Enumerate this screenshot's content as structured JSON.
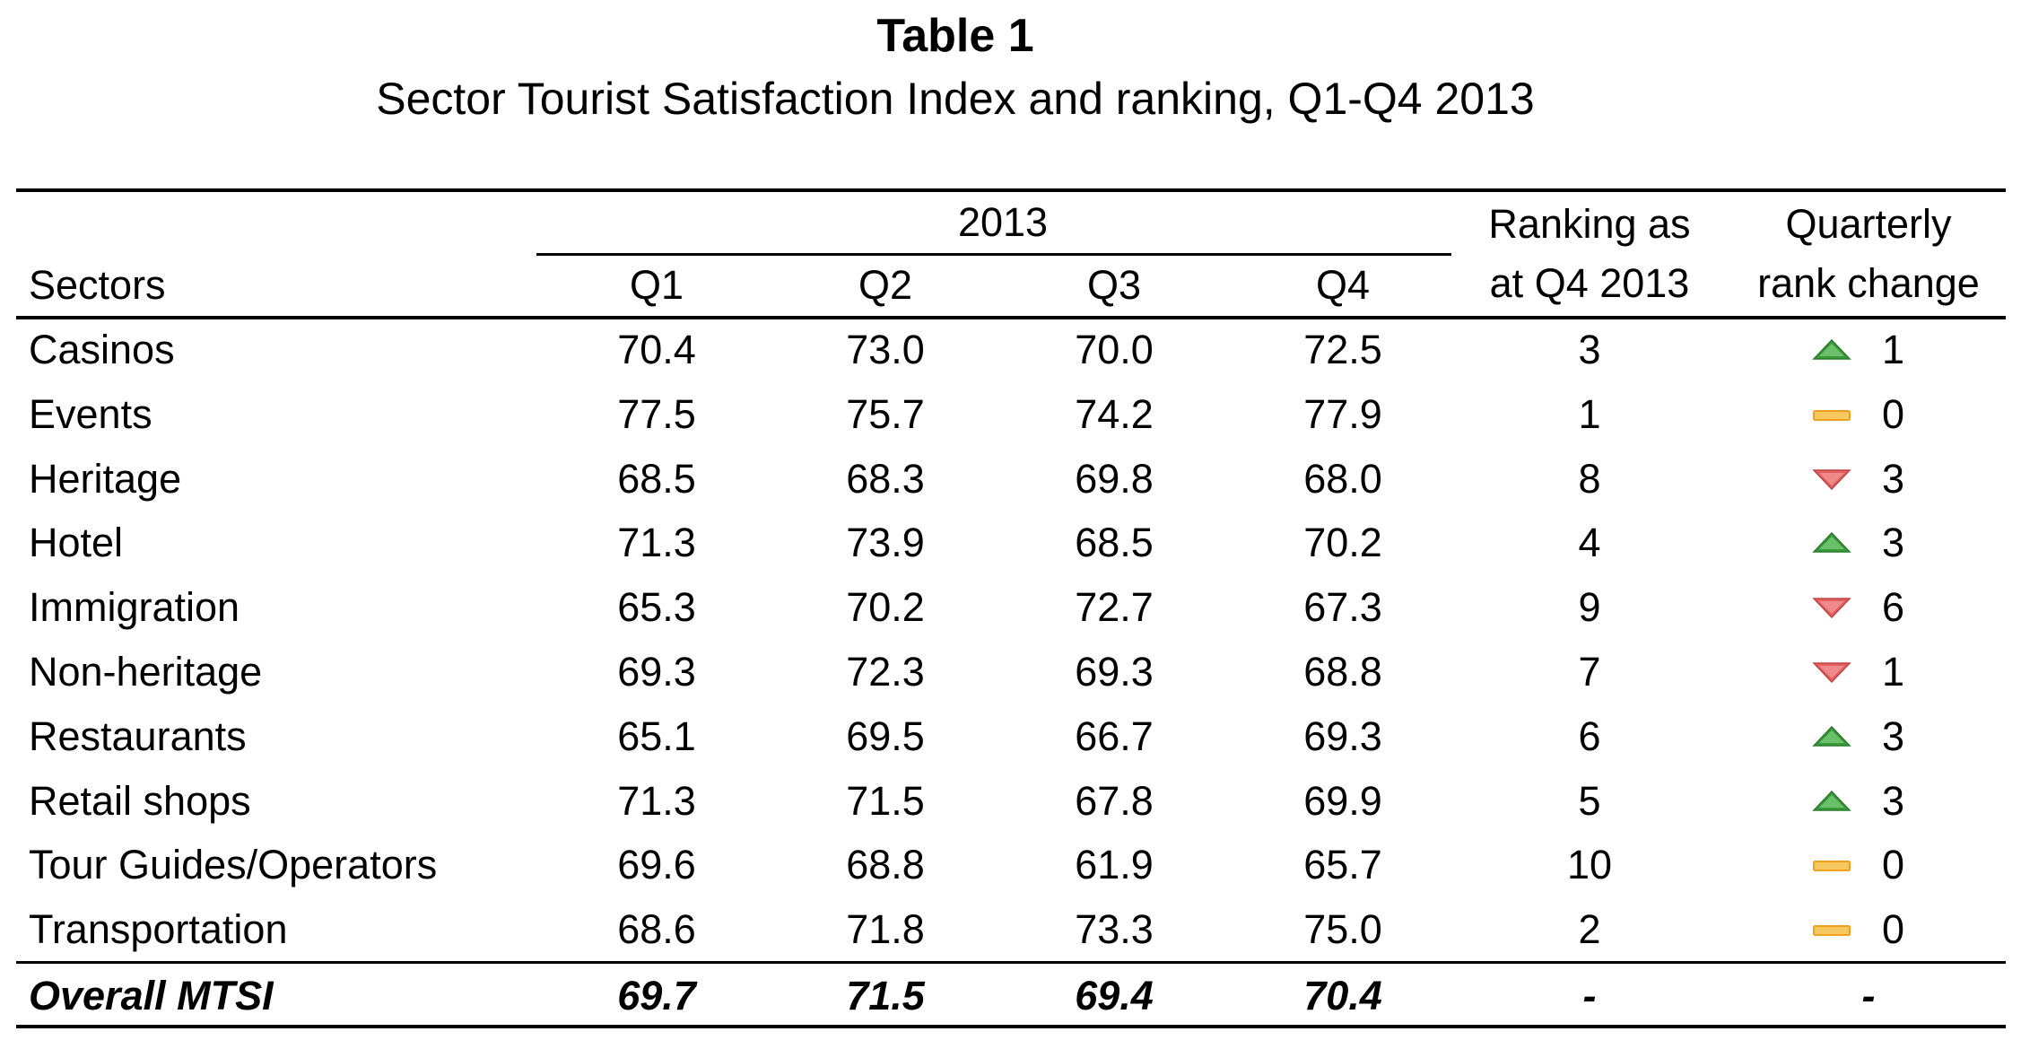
{
  "title": "Table 1",
  "subtitle": "Sector Tourist Satisfaction Index and ranking, Q1-Q4 2013",
  "header": {
    "year": "2013",
    "sectors": "Sectors",
    "quarters": [
      "Q1",
      "Q2",
      "Q3",
      "Q4"
    ],
    "ranking_line1": "Ranking as",
    "ranking_line2": "at Q4 2013",
    "change_line1": "Quarterly",
    "change_line2": "rank change"
  },
  "rows": [
    {
      "sector": "Casinos",
      "q1": "70.4",
      "q2": "73.0",
      "q3": "70.0",
      "q4": "72.5",
      "rank": "3",
      "dir": "up",
      "change": "1"
    },
    {
      "sector": "Events",
      "q1": "77.5",
      "q2": "75.7",
      "q3": "74.2",
      "q4": "77.9",
      "rank": "1",
      "dir": "same",
      "change": "0"
    },
    {
      "sector": "Heritage",
      "q1": "68.5",
      "q2": "68.3",
      "q3": "69.8",
      "q4": "68.0",
      "rank": "8",
      "dir": "down",
      "change": "3"
    },
    {
      "sector": "Hotel",
      "q1": "71.3",
      "q2": "73.9",
      "q3": "68.5",
      "q4": "70.2",
      "rank": "4",
      "dir": "up",
      "change": "3"
    },
    {
      "sector": "Immigration",
      "q1": "65.3",
      "q2": "70.2",
      "q3": "72.7",
      "q4": "67.3",
      "rank": "9",
      "dir": "down",
      "change": "6"
    },
    {
      "sector": "Non-heritage",
      "q1": "69.3",
      "q2": "72.3",
      "q3": "69.3",
      "q4": "68.8",
      "rank": "7",
      "dir": "down",
      "change": "1"
    },
    {
      "sector": "Restaurants",
      "q1": "65.1",
      "q2": "69.5",
      "q3": "66.7",
      "q4": "69.3",
      "rank": "6",
      "dir": "up",
      "change": "3"
    },
    {
      "sector": "Retail shops",
      "q1": "71.3",
      "q2": "71.5",
      "q3": "67.8",
      "q4": "69.9",
      "rank": "5",
      "dir": "up",
      "change": "3"
    },
    {
      "sector": "Tour Guides/Operators",
      "q1": "69.6",
      "q2": "68.8",
      "q3": "61.9",
      "q4": "65.7",
      "rank": "10",
      "dir": "same",
      "change": "0"
    },
    {
      "sector": "Transportation",
      "q1": "68.6",
      "q2": "71.8",
      "q3": "73.3",
      "q4": "75.0",
      "rank": "2",
      "dir": "same",
      "change": "0"
    }
  ],
  "overall": {
    "sector": "Overall MTSI",
    "q1": "69.7",
    "q2": "71.5",
    "q3": "69.4",
    "q4": "70.4",
    "rank": "-",
    "change": "-"
  },
  "colors": {
    "up": "#3a9a3a",
    "down": "#e06060",
    "same": "#f0a020"
  },
  "icons": {
    "up": "triangle-up-icon",
    "down": "triangle-down-icon",
    "same": "dash-icon"
  }
}
